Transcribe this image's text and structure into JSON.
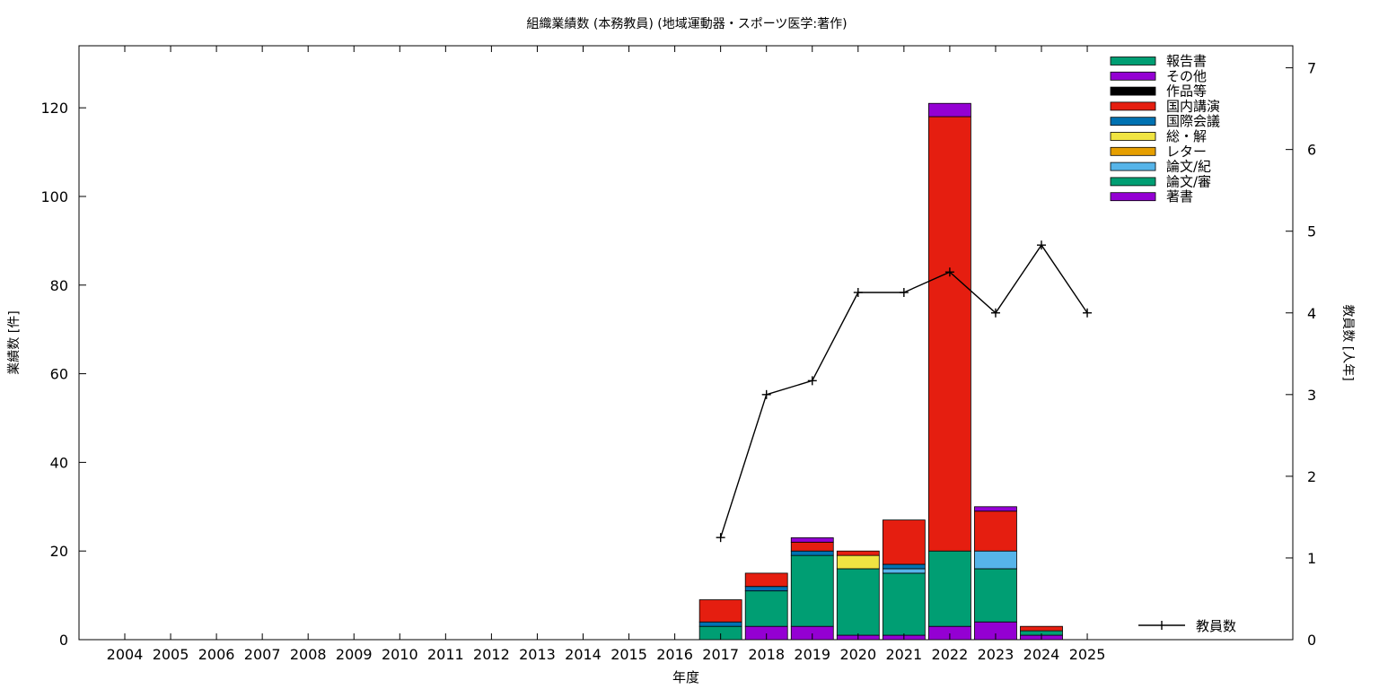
{
  "chart_data": {
    "type": "bar",
    "title": "組織業績数 (本務教員) (地域運動器・スポーツ医学:著作)",
    "xlabel": "年度",
    "ylabel": "業績数 [件]",
    "y2label": "教員数 [人年]",
    "ylim": [
      0,
      134
    ],
    "y2lim": [
      0,
      7.27
    ],
    "yticks": [
      0,
      20,
      40,
      60,
      80,
      100,
      120
    ],
    "y2ticks": [
      0,
      1,
      2,
      3,
      4,
      5,
      6,
      7
    ],
    "legend_position": "top-right",
    "grid": false,
    "categories": [
      "2004",
      "2005",
      "2006",
      "2007",
      "2008",
      "2009",
      "2010",
      "2011",
      "2012",
      "2013",
      "2014",
      "2015",
      "2016",
      "2017",
      "2018",
      "2019",
      "2020",
      "2021",
      "2022",
      "2023",
      "2024",
      "2025"
    ],
    "series": [
      {
        "name": "著書",
        "color": "#9400d3",
        "values": [
          0,
          0,
          0,
          0,
          0,
          0,
          0,
          0,
          0,
          0,
          0,
          0,
          0,
          0,
          3,
          3,
          1,
          1,
          3,
          4,
          1,
          0
        ]
      },
      {
        "name": "論文/審",
        "color": "#009e73",
        "values": [
          0,
          0,
          0,
          0,
          0,
          0,
          0,
          0,
          0,
          0,
          0,
          0,
          0,
          3,
          8,
          16,
          15,
          14,
          17,
          12,
          1,
          0
        ]
      },
      {
        "name": "論文/紀",
        "color": "#56b4e9",
        "values": [
          0,
          0,
          0,
          0,
          0,
          0,
          0,
          0,
          0,
          0,
          0,
          0,
          0,
          0,
          0,
          0,
          0,
          1,
          0,
          4,
          0,
          0
        ]
      },
      {
        "name": "レター",
        "color": "#e69f00",
        "values": [
          0,
          0,
          0,
          0,
          0,
          0,
          0,
          0,
          0,
          0,
          0,
          0,
          0,
          0,
          0,
          0,
          0,
          0,
          0,
          0,
          0,
          0
        ]
      },
      {
        "name": "総・解",
        "color": "#f0e442",
        "values": [
          0,
          0,
          0,
          0,
          0,
          0,
          0,
          0,
          0,
          0,
          0,
          0,
          0,
          0,
          0,
          0,
          3,
          0,
          0,
          0,
          0,
          0
        ]
      },
      {
        "name": "国際会議",
        "color": "#0072b2",
        "values": [
          0,
          0,
          0,
          0,
          0,
          0,
          0,
          0,
          0,
          0,
          0,
          0,
          0,
          1,
          1,
          1,
          0,
          1,
          0,
          0,
          0,
          0
        ]
      },
      {
        "name": "国内講演",
        "color": "#e51e10",
        "values": [
          0,
          0,
          0,
          0,
          0,
          0,
          0,
          0,
          0,
          0,
          0,
          0,
          0,
          5,
          3,
          2,
          1,
          10,
          98,
          9,
          1,
          0
        ]
      },
      {
        "name": "作品等",
        "color": "#000000",
        "values": [
          0,
          0,
          0,
          0,
          0,
          0,
          0,
          0,
          0,
          0,
          0,
          0,
          0,
          0,
          0,
          0,
          0,
          0,
          0,
          0,
          0,
          0
        ]
      },
      {
        "name": "その他",
        "color": "#9400d3",
        "values": [
          0,
          0,
          0,
          0,
          0,
          0,
          0,
          0,
          0,
          0,
          0,
          0,
          0,
          0,
          0,
          1,
          0,
          0,
          3,
          1,
          0,
          0
        ]
      },
      {
        "name": "報告書",
        "color": "#009e73",
        "values": [
          0,
          0,
          0,
          0,
          0,
          0,
          0,
          0,
          0,
          0,
          0,
          0,
          0,
          0,
          0,
          0,
          0,
          0,
          0,
          0,
          0,
          0
        ]
      }
    ],
    "line": {
      "name": "教員数",
      "axis": "y2",
      "color": "#000000",
      "x": [
        "2017",
        "2018",
        "2019",
        "2020",
        "2021",
        "2022",
        "2023",
        "2024",
        "2025"
      ],
      "values": [
        1.25,
        3.0,
        3.17,
        4.25,
        4.25,
        4.5,
        4.0,
        4.83,
        4.0
      ]
    }
  }
}
